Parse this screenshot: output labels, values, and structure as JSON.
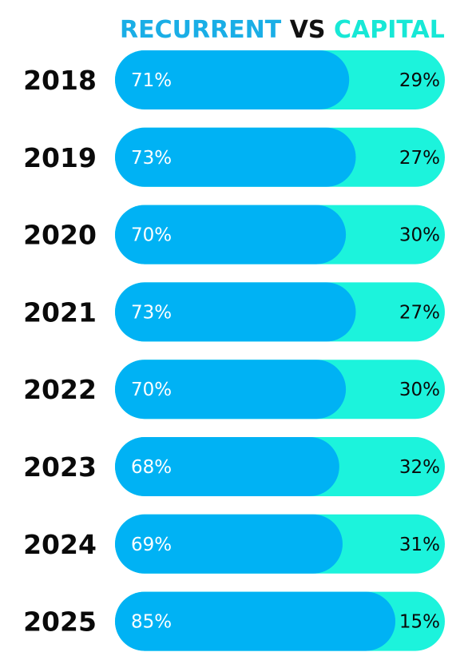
{
  "title": {
    "part1": "RECURRENT",
    "part2": "VS",
    "part3": "CAPITAL"
  },
  "colors": {
    "recurrent": "#00b2f4",
    "capital": "#1cf3dc",
    "title_recurrent": "#1aaee6",
    "title_capital": "#17e8d6"
  },
  "chart_data": {
    "type": "bar",
    "orientation": "horizontal",
    "stacked": true,
    "categories": [
      "2018",
      "2019",
      "2020",
      "2021",
      "2022",
      "2023",
      "2024",
      "2025"
    ],
    "series": [
      {
        "name": "RECURRENT",
        "values": [
          71,
          73,
          70,
          73,
          70,
          68,
          69,
          85
        ],
        "labels": [
          "71%",
          "73%",
          "70%",
          "73%",
          "70%",
          "68%",
          "69%",
          "85%"
        ]
      },
      {
        "name": "CAPITAL",
        "values": [
          29,
          27,
          30,
          27,
          30,
          32,
          31,
          15
        ],
        "labels": [
          "29%",
          "27%",
          "30%",
          "27%",
          "30%",
          "32%",
          "31%",
          "15%"
        ]
      }
    ],
    "xlim": [
      0,
      100
    ],
    "grid": false,
    "legend": "top"
  }
}
